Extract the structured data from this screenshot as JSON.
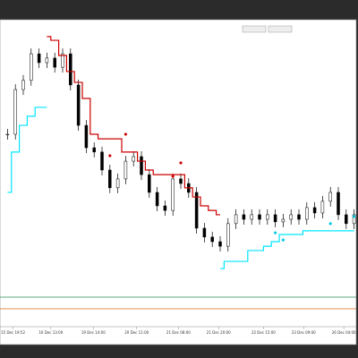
{
  "chart_data": {
    "type": "candlestick",
    "x": [
      0,
      1,
      2,
      3,
      4,
      5,
      6,
      7,
      8,
      9,
      10,
      11,
      12,
      13,
      14,
      15,
      16,
      17,
      18,
      19,
      20,
      21,
      22,
      23,
      24,
      25,
      26,
      27,
      28,
      29,
      30,
      31,
      32,
      33,
      34,
      35,
      36,
      37,
      38,
      39,
      40,
      41,
      42,
      43,
      44
    ],
    "xlim": [
      -0.5,
      44.5
    ],
    "xticks": [
      {
        "value": 0.7,
        "label": "15 Dec 19:52"
      },
      {
        "value": 5.5,
        "label": "16 Dec 13:00"
      },
      {
        "value": 10.9,
        "label": "19 Dec 14:00"
      },
      {
        "value": 16.4,
        "label": "20 Dec 11:00"
      },
      {
        "value": 21.7,
        "label": "21 Dec 08:00"
      },
      {
        "value": 26.8,
        "label": "21 Dec 20:00"
      },
      {
        "value": 32.5,
        "label": "22 Dec 15:00"
      },
      {
        "value": 37.6,
        "label": "23 Dec 09:00"
      },
      {
        "value": 42.7,
        "label": "26 Dec 04:00"
      }
    ],
    "ylim": [
      0,
      100
    ],
    "series": [
      {
        "color": "#000000",
        "values": [
          62.5,
          78.1,
          81.3,
          90.6,
          87.5,
          89.1,
          85.9,
          90.6,
          79.7,
          65.6,
          57.8,
          56.3,
          50,
          43.8,
          46.9,
          53.1,
          54.7,
          48.4,
          42.2,
          37.5,
          35.9,
          46.9,
          45.3,
          42.2,
          29.7,
          26.6,
          25,
          23.4,
          31.3,
          34.4,
          32.8,
          34.4,
          32.8,
          34.4,
          31.9,
          32.8,
          34.4,
          32.8,
          36.9,
          35,
          39.1,
          42.2,
          34.4,
          31.3,
          34.4
        ]
      },
      {
        "color": "#cc0000",
        "values": [
          null,
          null,
          null,
          null,
          null,
          96.6,
          95.3,
          90,
          84.4,
          80.6,
          75,
          62.5,
          60.9,
          60.9,
          60.9,
          56.3,
          56.3,
          53.1,
          50,
          48.4,
          48.4,
          48.4,
          48.4,
          43.8,
          40.6,
          37.5,
          35.9,
          34.4,
          null,
          null,
          null,
          null,
          null,
          null,
          null,
          null,
          null,
          null,
          null,
          null,
          null,
          null,
          null,
          null,
          null
        ]
      },
      {
        "color": "#00e5ff",
        "values": [
          42.2,
          56.3,
          65.6,
          68.8,
          71.9,
          71.9,
          null,
          null,
          null,
          null,
          null,
          null,
          null,
          null,
          null,
          null,
          null,
          null,
          null,
          null,
          null,
          null,
          null,
          null,
          null,
          null,
          null,
          15.6,
          18.1,
          18.1,
          18.1,
          21.9,
          21.9,
          23.4,
          25,
          27.5,
          27.5,
          27.5,
          28.8,
          28.8,
          28.8,
          28.8,
          28.8,
          28.8,
          28.8
        ]
      },
      {
        "color": "#cc0000",
        "values": [
          null,
          null,
          null,
          null,
          null,
          null,
          null,
          null,
          null,
          null,
          null,
          null,
          null,
          55,
          null,
          62.5,
          null,
          null,
          null,
          null,
          null,
          47.8,
          52.5,
          null,
          null,
          null,
          null,
          null,
          null,
          null,
          null,
          null,
          null,
          null,
          null,
          null,
          null,
          null,
          null,
          null,
          null,
          null,
          null,
          null,
          null
        ]
      },
      {
        "color": "#00c8e6",
        "values": [
          null,
          null,
          null,
          null,
          null,
          null,
          null,
          null,
          null,
          null,
          null,
          null,
          null,
          null,
          null,
          null,
          null,
          null,
          null,
          null,
          null,
          null,
          null,
          null,
          null,
          null,
          null,
          null,
          null,
          null,
          null,
          null,
          null,
          null,
          28.1,
          25.6,
          null,
          null,
          null,
          null,
          null,
          31.3,
          null,
          null,
          33.8
        ]
      }
    ]
  }
}
